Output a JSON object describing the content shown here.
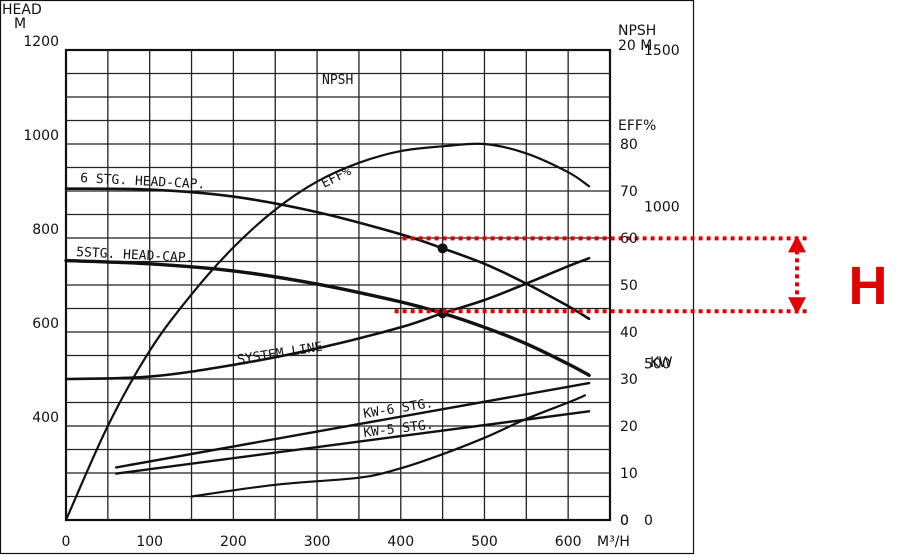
{
  "chart_data": {
    "type": "line",
    "xlabel": "M³/H",
    "x_ticks": [
      0,
      100,
      200,
      300,
      400,
      500,
      600
    ],
    "xlim": [
      0,
      650
    ],
    "axes": {
      "head": {
        "label_line1": "HEAD",
        "label_line2": "M",
        "ticks": [
          400,
          600,
          800,
          1000,
          1200
        ],
        "range": [
          200,
          1200
        ]
      },
      "npsh": {
        "label_line1": "NPSH",
        "label_line2": "20 M",
        "ticks": [
          0
        ],
        "range": [
          0,
          20
        ]
      },
      "eff": {
        "label": "EFF%",
        "ticks": [
          0,
          10,
          20,
          30,
          40,
          50,
          60,
          70,
          80
        ],
        "range": [
          0,
          100
        ]
      },
      "kw": {
        "label": "KW",
        "ticks": [
          0,
          500,
          1000,
          1500
        ],
        "range": [
          0,
          1500
        ]
      }
    },
    "series": [
      {
        "name": "6 STG. HEAD-CAP.",
        "axis": "head",
        "points": [
          [
            0,
            905
          ],
          [
            100,
            903
          ],
          [
            200,
            888
          ],
          [
            300,
            855
          ],
          [
            400,
            808
          ],
          [
            450,
            778
          ],
          [
            500,
            745
          ],
          [
            550,
            703
          ],
          [
            600,
            655
          ],
          [
            625,
            628
          ]
        ]
      },
      {
        "name": "5STG. HEAD-CAP.",
        "axis": "head",
        "points": [
          [
            0,
            752
          ],
          [
            100,
            745
          ],
          [
            200,
            730
          ],
          [
            300,
            702
          ],
          [
            400,
            664
          ],
          [
            450,
            640
          ],
          [
            500,
            610
          ],
          [
            550,
            575
          ],
          [
            600,
            532
          ],
          [
            625,
            508
          ]
        ]
      },
      {
        "name": "SYSTEM LINE",
        "axis": "head",
        "points": [
          [
            0,
            500
          ],
          [
            100,
            505
          ],
          [
            200,
            530
          ],
          [
            300,
            565
          ],
          [
            400,
            610
          ],
          [
            450,
            640
          ],
          [
            500,
            668
          ],
          [
            550,
            703
          ],
          [
            600,
            740
          ],
          [
            625,
            757
          ]
        ]
      },
      {
        "name": "EFF%",
        "axis": "eff",
        "points": [
          [
            0,
            0
          ],
          [
            50,
            20
          ],
          [
            100,
            36
          ],
          [
            150,
            48
          ],
          [
            200,
            58
          ],
          [
            250,
            66
          ],
          [
            300,
            72
          ],
          [
            350,
            76
          ],
          [
            400,
            78.5
          ],
          [
            450,
            79.5
          ],
          [
            500,
            80
          ],
          [
            550,
            78
          ],
          [
            600,
            74
          ],
          [
            625,
            71
          ]
        ]
      },
      {
        "name": "NPSH",
        "axis": "npsh",
        "points": [
          [
            150,
            1
          ],
          [
            250,
            1.5
          ],
          [
            350,
            1.8
          ],
          [
            400,
            2.2
          ],
          [
            450,
            2.8
          ],
          [
            500,
            3.5
          ],
          [
            550,
            4.3
          ],
          [
            600,
            5
          ],
          [
            620,
            5.3
          ]
        ]
      },
      {
        "name": "KW-6 STG.",
        "axis": "kw",
        "points": [
          [
            60,
            168
          ],
          [
            625,
            437
          ]
        ]
      },
      {
        "name": "KW-5 STG.",
        "axis": "kw",
        "points": [
          [
            60,
            148
          ],
          [
            625,
            347
          ]
        ]
      }
    ],
    "operating_points": [
      {
        "x": 450,
        "head": 778
      },
      {
        "x": 450,
        "head": 640
      }
    ],
    "annotation": {
      "label": "H",
      "color": "#e30000"
    }
  }
}
